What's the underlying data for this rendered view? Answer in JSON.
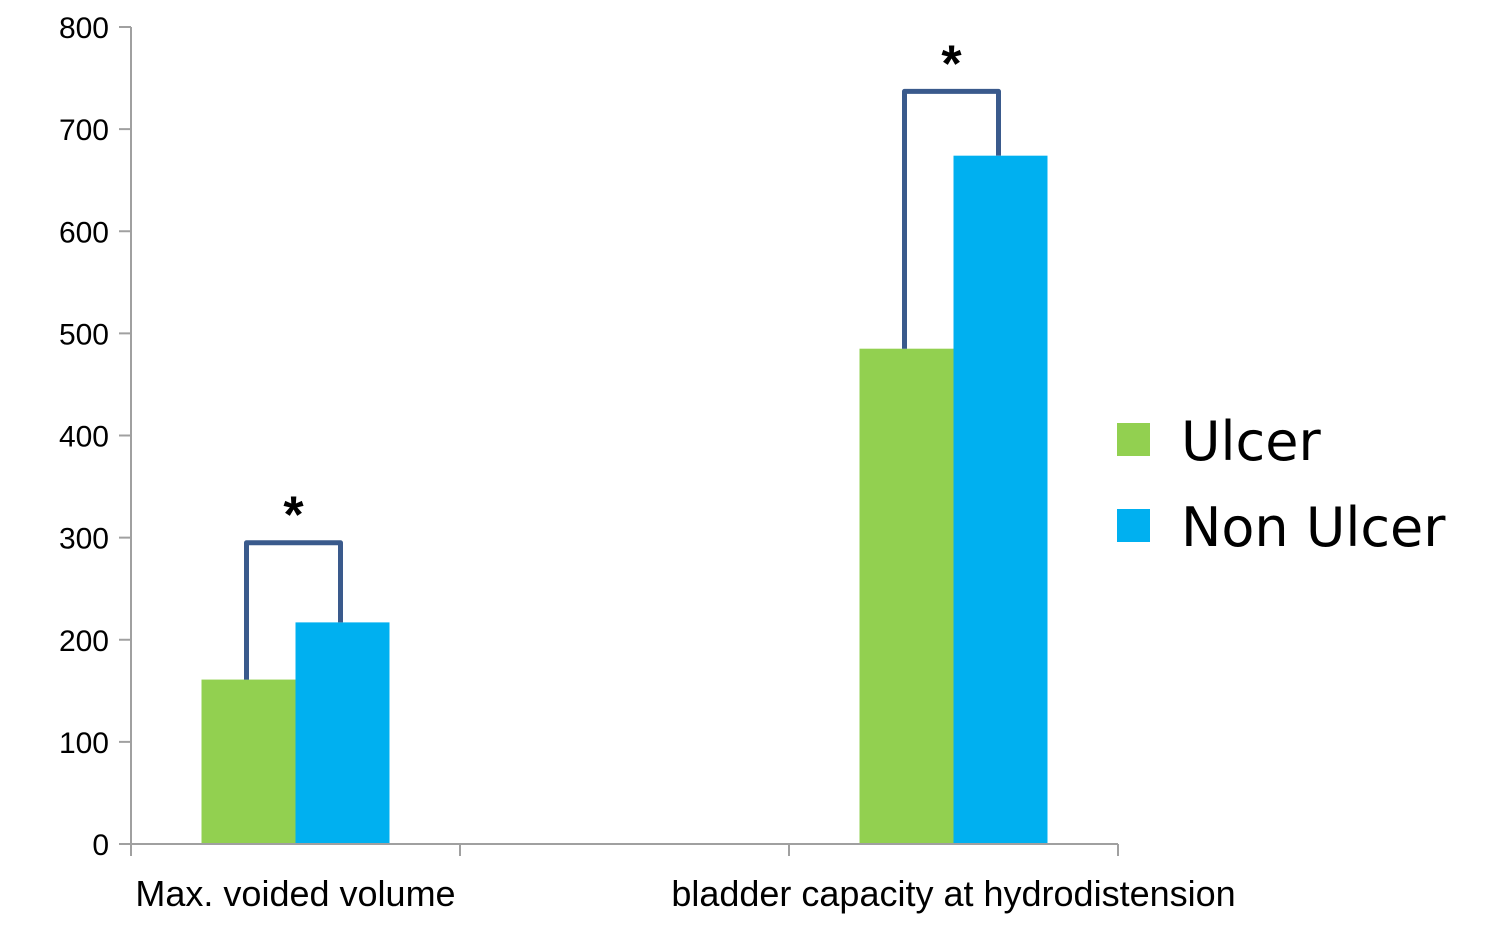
{
  "chart_data": {
    "type": "bar",
    "categories": [
      "Max. voided volume",
      "bladder capacity at hydrodistension"
    ],
    "series": [
      {
        "name": "Ulcer",
        "values": [
          161,
          485
        ],
        "color": "#92d050"
      },
      {
        "name": "Non Ulcer",
        "values": [
          217,
          674
        ],
        "color": "#00b0f0"
      }
    ],
    "ylim": [
      0,
      800
    ],
    "yticks": [
      0,
      100,
      200,
      300,
      400,
      500,
      600,
      700,
      800
    ],
    "grid": false,
    "legend_position": "right",
    "significance": [
      {
        "category_index": 0,
        "label": "*",
        "bracket_y": 295
      },
      {
        "category_index": 1,
        "label": "*",
        "bracket_y": 737
      }
    ],
    "bracket_color": "#3a5a8c",
    "axis_color": "#a0a0a0"
  }
}
